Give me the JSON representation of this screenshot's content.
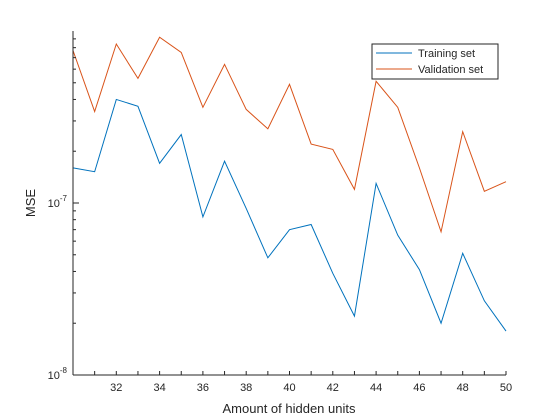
{
  "chart_data": {
    "type": "line",
    "title": "",
    "xlabel": "Amount of  hidden units",
    "ylabel": "MSE",
    "yscale": "log",
    "xlim": [
      30,
      50
    ],
    "ylim": [
      1e-08,
      1e-06
    ],
    "x": [
      30,
      31,
      32,
      33,
      34,
      35,
      36,
      37,
      38,
      39,
      40,
      41,
      42,
      43,
      44,
      45,
      46,
      47,
      48,
      49,
      50
    ],
    "xticks": [
      32,
      34,
      36,
      38,
      40,
      42,
      44,
      46,
      48,
      50
    ],
    "yticks": [
      {
        "value": 1e-08,
        "base": "10",
        "exp": "-8"
      },
      {
        "value": 1e-07,
        "base": "10",
        "exp": "-7"
      }
    ],
    "legend": {
      "location": "top-right"
    },
    "series": [
      {
        "name": "Training set",
        "color": "#0072BD",
        "values": [
          1.6e-07,
          1.52e-07,
          4e-07,
          3.65e-07,
          1.7e-07,
          2.5e-07,
          8.3e-08,
          1.75e-07,
          9.3e-08,
          4.8e-08,
          7e-08,
          7.5e-08,
          3.9e-08,
          2.2e-08,
          1.3e-07,
          6.5e-08,
          4.1e-08,
          2e-08,
          5.1e-08,
          2.7e-08,
          1.8e-08
        ]
      },
      {
        "name": "Validation set",
        "color": "#D95319",
        "values": [
          7.7e-07,
          3.4e-07,
          8.4e-07,
          5.3e-07,
          9.2e-07,
          7.5e-07,
          3.6e-07,
          6.4e-07,
          3.5e-07,
          2.7e-07,
          4.9e-07,
          2.2e-07,
          2.05e-07,
          1.2e-07,
          5.1e-07,
          3.6e-07,
          1.6e-07,
          6.8e-08,
          2.6e-07,
          1.17e-07,
          1.33e-07
        ]
      }
    ]
  }
}
